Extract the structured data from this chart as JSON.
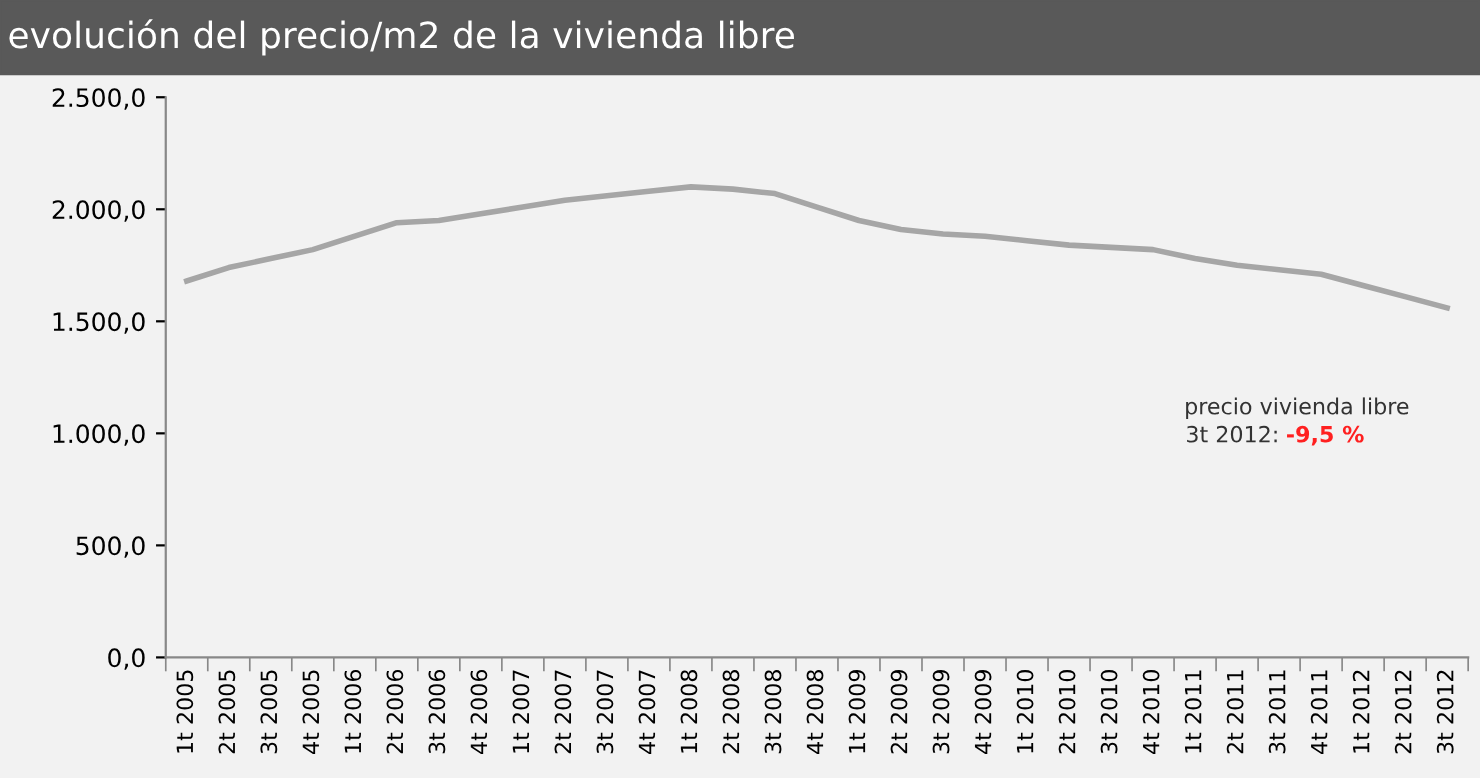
{
  "chart_data": {
    "type": "line",
    "title": "evolución del precio/m2 de la vivienda libre",
    "categories": [
      "1t 2005",
      "2t 2005",
      "3t 2005",
      "4t 2005",
      "1t 2006",
      "2t 2006",
      "3t 2006",
      "4t 2006",
      "1t 2007",
      "2t 2007",
      "3t 2007",
      "4t 2007",
      "1t 2008",
      "2t 2008",
      "3t 2008",
      "4t 2008",
      "1t 2009",
      "2t 2009",
      "3t 2009",
      "4t 2009",
      "1t 2010",
      "2t 2010",
      "3t 2010",
      "4t 2010",
      "1t 2011",
      "2t 2011",
      "3t 2011",
      "4t 2011",
      "1t 2012",
      "2t 2012",
      "3t 2012"
    ],
    "series": [
      {
        "color": "#a6a6a6",
        "values": [
          1680,
          1740,
          1780,
          1820,
          1880,
          1940,
          1950,
          1980,
          2010,
          2040,
          2060,
          2080,
          2100,
          2090,
          2070,
          2010,
          1950,
          1910,
          1890,
          1880,
          1860,
          1840,
          1830,
          1820,
          1780,
          1750,
          1730,
          1710,
          1660,
          1610,
          1560
        ]
      }
    ],
    "ylim": [
      0,
      2500
    ],
    "yticks": [
      {
        "value": 0,
        "label": "0,0"
      },
      {
        "value": 500,
        "label": "500,0"
      },
      {
        "value": 1000,
        "label": "1.000,0"
      },
      {
        "value": 1500,
        "label": "1.500,0"
      },
      {
        "value": 2000,
        "label": "2.000,0"
      },
      {
        "value": 2500,
        "label": "2.500,0"
      }
    ],
    "annotations": [
      "precio vivienda libre",
      "3t 2012:",
      "-9,5 %"
    ],
    "grid": false,
    "legend": false,
    "marker": "none",
    "line_style": "solid"
  }
}
